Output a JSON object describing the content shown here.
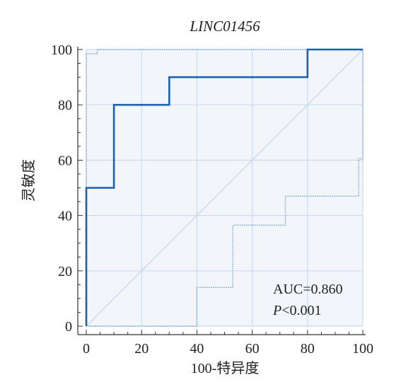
{
  "chart_data": {
    "type": "line",
    "title": "LINC01456",
    "xlabel": "100-特异度",
    "ylabel": "灵敏度",
    "xlim": [
      0,
      100
    ],
    "ylim": [
      0,
      100
    ],
    "x_ticks": [
      "0",
      "20",
      "40",
      "60",
      "80",
      "100"
    ],
    "y_ticks": [
      "0",
      "20",
      "40",
      "60",
      "80",
      "100"
    ],
    "grid": true,
    "series": [
      {
        "role": "roc-curve",
        "x": [
          0,
          0,
          10,
          10,
          30,
          30,
          80,
          80,
          100
        ],
        "y": [
          0,
          50,
          50,
          80,
          80,
          90,
          90,
          100,
          100
        ]
      },
      {
        "role": "ci-upper",
        "x": [
          0,
          0,
          4,
          4,
          100
        ],
        "y": [
          0,
          98.5,
          98.5,
          100,
          100
        ]
      },
      {
        "role": "ci-lower",
        "x": [
          0,
          40,
          40,
          53,
          53,
          72,
          72,
          98.5,
          98.5,
          100,
          100
        ],
        "y": [
          0,
          0,
          14,
          14,
          36.5,
          36.5,
          47,
          47,
          60.5,
          60.5,
          100
        ]
      },
      {
        "role": "reference",
        "x": [
          0,
          100
        ],
        "y": [
          0,
          100
        ]
      }
    ],
    "annotations": {
      "auc": "AUC=0.860",
      "p_prefix": "P",
      "p_rest": "<0.001"
    },
    "colors": {
      "plot_background": "#f2f6fb",
      "grid": "#c9daf0",
      "roc": "#1f5fad",
      "ci": "#7ea4d1",
      "reference": "#c9daf0",
      "axis": "#333333"
    }
  }
}
